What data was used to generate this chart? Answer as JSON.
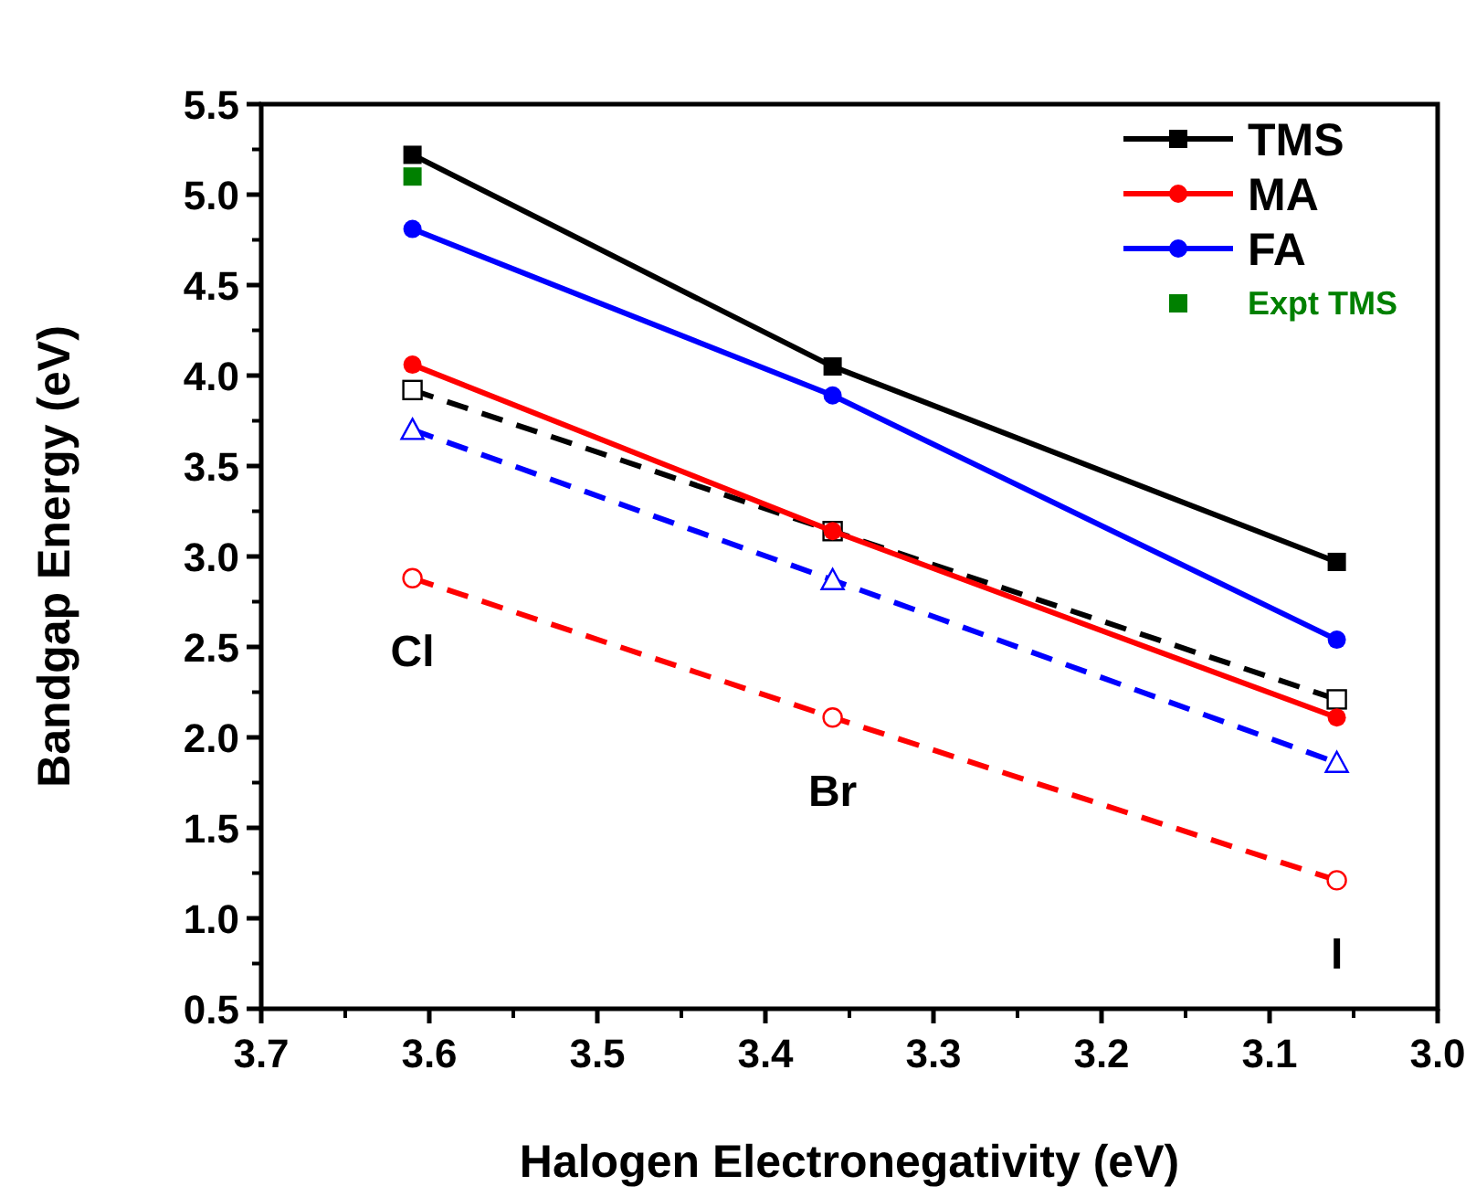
{
  "chart_data": {
    "type": "line",
    "xlabel": "Halogen Electronegativity (eV)",
    "ylabel": "Bandgap Energy (eV)",
    "xlim": [
      3.7,
      3.0
    ],
    "xticks": [
      3.7,
      3.6,
      3.5,
      3.4,
      3.3,
      3.2,
      3.1,
      {
        "value": 3,
        "label": "3.0"
      }
    ],
    "ylim": [
      0.5,
      5.5
    ],
    "yticks": [
      0.5,
      {
        "value": 1,
        "label": "1.0"
      },
      1.5,
      {
        "value": 2,
        "label": "2.0"
      },
      2.5,
      {
        "value": 3,
        "label": "3.0"
      },
      3.5,
      {
        "value": 4,
        "label": "4.0"
      },
      4.5,
      {
        "value": 5,
        "label": "5.0"
      },
      5.5
    ],
    "grid": false,
    "legend": "top right",
    "x": [
      3.61,
      3.36,
      3.06
    ],
    "series": [
      {
        "name": "TMS",
        "color": "#000000",
        "values": [
          5.22,
          4.05,
          2.97
        ],
        "marker": "square",
        "line_style": "solid"
      },
      {
        "name": "MA",
        "color": "#ff0000",
        "values": [
          4.06,
          3.14,
          2.11
        ],
        "marker": "circle",
        "line_style": "solid"
      },
      {
        "name": "FA",
        "color": "#0000ff",
        "values": [
          4.81,
          3.89,
          2.54
        ],
        "marker": "circle",
        "line_style": "solid"
      },
      {
        "name": "Expt TMS",
        "type": "scatter",
        "color": "#008000",
        "x": [
          3.61
        ],
        "values": [
          5.1
        ],
        "marker": "square"
      },
      {
        "color": "#000000",
        "values": [
          3.92,
          3.14,
          2.21
        ],
        "marker": "square",
        "line_style": "dashed"
      },
      {
        "color": "#0000ff",
        "values": [
          3.7,
          2.87,
          1.86
        ],
        "marker": "triangle",
        "line_style": "dashed"
      },
      {
        "color": "#ff0000",
        "values": [
          2.88,
          2.11,
          1.21
        ],
        "marker": "circle",
        "line_style": "dashed"
      }
    ],
    "annotations": [
      "Cl",
      "Br",
      "I"
    ]
  }
}
